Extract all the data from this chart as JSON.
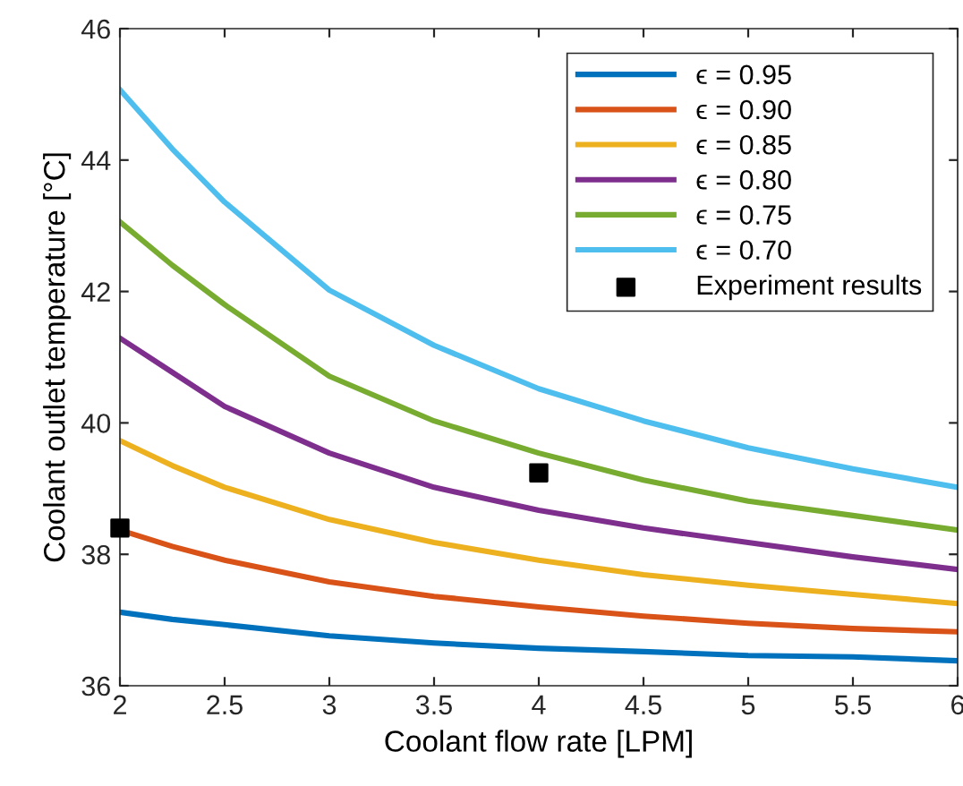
{
  "chart_data": {
    "type": "line",
    "xlabel": "Coolant flow rate [LPM]",
    "ylabel": "Coolant outlet temperature [°C]",
    "x": [
      2,
      2.25,
      2.5,
      3,
      3.5,
      4,
      4.5,
      5,
      5.5,
      6
    ],
    "series": [
      {
        "name": "ϵ = 0.95",
        "color": "#0072bd",
        "values": [
          37.12,
          37.01,
          36.93,
          36.76,
          36.65,
          36.57,
          36.52,
          36.46,
          36.44,
          36.38
        ]
      },
      {
        "name": "ϵ = 0.90",
        "color": "#d95319",
        "values": [
          38.37,
          38.12,
          37.91,
          37.58,
          37.36,
          37.2,
          37.06,
          36.95,
          36.87,
          36.82
        ]
      },
      {
        "name": "ϵ = 0.85",
        "color": "#edb120",
        "values": [
          39.73,
          39.35,
          39.02,
          38.53,
          38.18,
          37.91,
          37.69,
          37.53,
          37.39,
          37.25
        ]
      },
      {
        "name": "ϵ = 0.80",
        "color": "#7e2f8e",
        "values": [
          41.29,
          40.77,
          40.25,
          39.54,
          39.02,
          38.67,
          38.4,
          38.18,
          37.96,
          37.77
        ]
      },
      {
        "name": "ϵ = 0.75",
        "color": "#77ac30",
        "values": [
          43.06,
          42.4,
          41.8,
          40.71,
          40.03,
          39.54,
          39.13,
          38.81,
          38.59,
          38.37
        ]
      },
      {
        "name": "ϵ = 0.70",
        "color": "#4dbeee",
        "values": [
          45.07,
          44.17,
          43.36,
          42.02,
          41.18,
          40.52,
          40.03,
          39.62,
          39.3,
          39.02
        ]
      },
      {
        "name": "Experiment results",
        "type": "scatter",
        "marker": "square",
        "color": "#000000",
        "x": [
          2,
          4
        ],
        "values": [
          38.4,
          39.24
        ]
      }
    ],
    "xlim": [
      2,
      6
    ],
    "ylim": [
      36,
      46
    ],
    "xticks": [
      2,
      2.5,
      3,
      3.5,
      4,
      4.5,
      5,
      5.5,
      6
    ],
    "yticks": [
      36,
      38,
      40,
      42,
      44,
      46
    ],
    "legend": "top right",
    "grid": false
  }
}
